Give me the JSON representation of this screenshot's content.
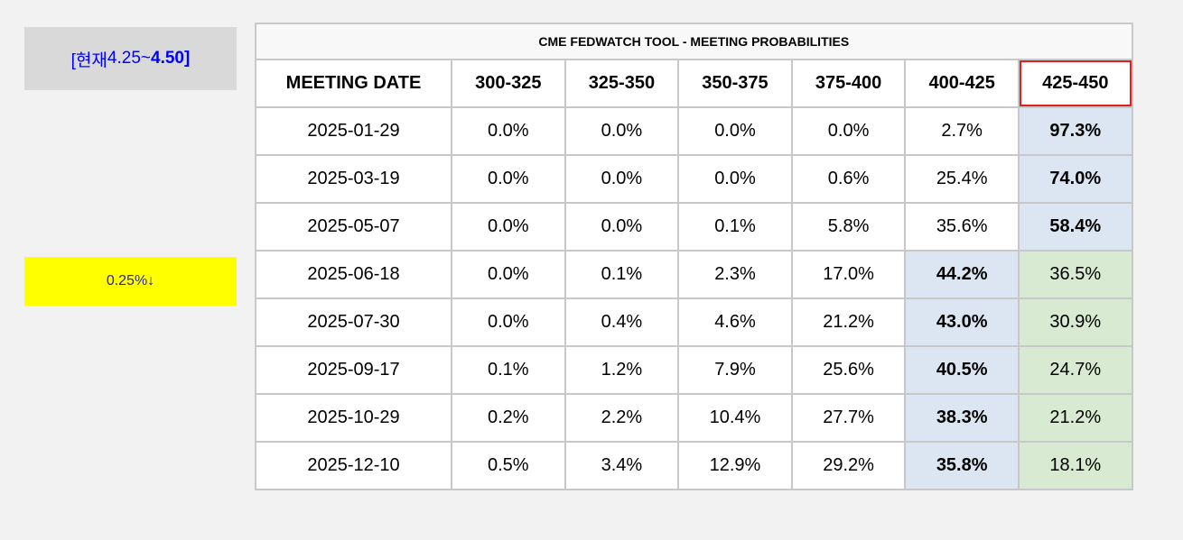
{
  "sidebar": {
    "current_prefix": "[현재 ",
    "current_range_low": "4.25~",
    "current_range_high": "4.50]",
    "cut_label": "0.25%↓"
  },
  "table": {
    "title": "CME FEDWATCH TOOL - MEETING PROBABILITIES",
    "headers": [
      "MEETING DATE",
      "300-325",
      "325-350",
      "350-375",
      "375-400",
      "400-425",
      "425-450"
    ],
    "rows": [
      {
        "date": "2025-01-29",
        "values": [
          "0.0%",
          "0.0%",
          "0.0%",
          "0.0%",
          "2.7%",
          "97.3%"
        ],
        "max_index": 5
      },
      {
        "date": "2025-03-19",
        "values": [
          "0.0%",
          "0.0%",
          "0.0%",
          "0.6%",
          "25.4%",
          "74.0%"
        ],
        "max_index": 5
      },
      {
        "date": "2025-05-07",
        "values": [
          "0.0%",
          "0.0%",
          "0.1%",
          "5.8%",
          "35.6%",
          "58.4%"
        ],
        "max_index": 5
      },
      {
        "date": "2025-06-18",
        "values": [
          "0.0%",
          "0.1%",
          "2.3%",
          "17.0%",
          "44.2%",
          "36.5%"
        ],
        "max_index": 4
      },
      {
        "date": "2025-07-30",
        "values": [
          "0.0%",
          "0.4%",
          "4.6%",
          "21.2%",
          "43.0%",
          "30.9%"
        ],
        "max_index": 4
      },
      {
        "date": "2025-09-17",
        "values": [
          "0.1%",
          "1.2%",
          "7.9%",
          "25.6%",
          "40.5%",
          "24.7%"
        ],
        "max_index": 4
      },
      {
        "date": "2025-10-29",
        "values": [
          "0.2%",
          "2.2%",
          "10.4%",
          "27.7%",
          "38.3%",
          "21.2%"
        ],
        "max_index": 4
      },
      {
        "date": "2025-12-10",
        "values": [
          "0.5%",
          "3.4%",
          "12.9%",
          "29.2%",
          "35.8%",
          "18.1%"
        ],
        "max_index": 4
      }
    ]
  },
  "colors": {
    "max_cell": "#dce6f2",
    "current_range_cell": "#d9ead3",
    "cut_label_bg": "#ffff00",
    "header_outline": "#e02020"
  }
}
